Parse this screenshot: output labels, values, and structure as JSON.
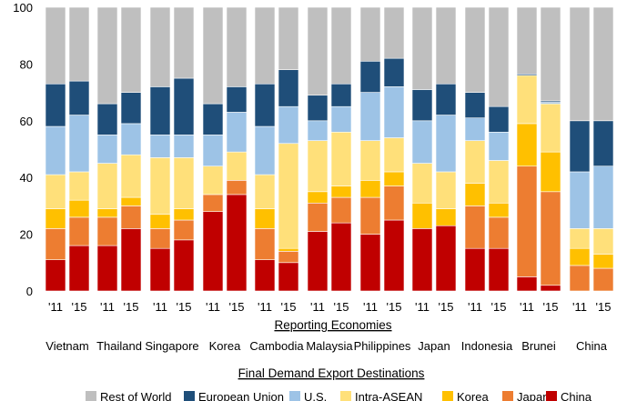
{
  "chart_data": {
    "type": "bar",
    "stacked": true,
    "ylim": [
      0,
      100
    ],
    "yticks": [
      0,
      20,
      40,
      60,
      80,
      100
    ],
    "xlabel": "Reporting Economies",
    "legend_title": "Final Demand Export Destinations",
    "legend_position": "bottom",
    "grid": false,
    "series": [
      {
        "name": "China",
        "color": "#c00000"
      },
      {
        "name": "Japan",
        "color": "#ed7d31"
      },
      {
        "name": "Korea",
        "color": "#ffc000"
      },
      {
        "name": "Intra-ASEAN",
        "color": "#ffe07a"
      },
      {
        "name": "U.S.",
        "color": "#9dc3e6"
      },
      {
        "name": "European Union",
        "color": "#1f4e79"
      },
      {
        "name": "Rest of World",
        "color": "#bfbfbf"
      }
    ],
    "groups": [
      {
        "economy": "Vietnam",
        "bars": [
          {
            "year": "'11",
            "values": [
              11,
              11,
              7,
              12,
              17,
              15,
              27
            ]
          },
          {
            "year": "'15",
            "values": [
              16,
              10,
              6,
              10,
              20,
              12,
              26
            ]
          }
        ]
      },
      {
        "economy": "Thailand",
        "bars": [
          {
            "year": "'11",
            "values": [
              16,
              10,
              3,
              16,
              10,
              11,
              34
            ]
          },
          {
            "year": "'15",
            "values": [
              22,
              8,
              3,
              15,
              11,
              11,
              30
            ]
          }
        ]
      },
      {
        "economy": "Singapore",
        "bars": [
          {
            "year": "'11",
            "values": [
              15,
              7,
              5,
              20,
              8,
              17,
              28
            ]
          },
          {
            "year": "'15",
            "values": [
              18,
              7,
              4,
              18,
              8,
              20,
              25
            ]
          }
        ]
      },
      {
        "economy": "Korea",
        "bars": [
          {
            "year": "'11",
            "values": [
              28,
              6,
              0,
              10,
              11,
              11,
              34
            ]
          },
          {
            "year": "'15",
            "values": [
              34,
              5,
              0,
              10,
              14,
              9,
              28
            ]
          }
        ]
      },
      {
        "economy": "Cambodia",
        "bars": [
          {
            "year": "'11",
            "values": [
              11,
              11,
              7,
              12,
              17,
              15,
              27
            ]
          },
          {
            "year": "'15",
            "values": [
              10,
              4,
              1,
              37,
              13,
              13,
              22
            ]
          }
        ]
      },
      {
        "economy": "Malaysia",
        "bars": [
          {
            "year": "'11",
            "values": [
              21,
              10,
              4,
              18,
              7,
              9,
              31
            ]
          },
          {
            "year": "'15",
            "values": [
              24,
              9,
              4,
              19,
              9,
              8,
              27
            ]
          }
        ]
      },
      {
        "economy": "Philippines",
        "bars": [
          {
            "year": "'11",
            "values": [
              20,
              13,
              6,
              14,
              17,
              11,
              19
            ]
          },
          {
            "year": "'15",
            "values": [
              25,
              12,
              5,
              12,
              18,
              10,
              18
            ]
          }
        ]
      },
      {
        "economy": "Japan",
        "bars": [
          {
            "year": "'11",
            "values": [
              22,
              0,
              9,
              14,
              15,
              11,
              29
            ]
          },
          {
            "year": "'15",
            "values": [
              23,
              0,
              6,
              13,
              20,
              11,
              27
            ]
          }
        ]
      },
      {
        "economy": "Indonesia",
        "bars": [
          {
            "year": "'11",
            "values": [
              15,
              15,
              8,
              15,
              8,
              9,
              30
            ]
          },
          {
            "year": "'15",
            "values": [
              15,
              11,
              5,
              15,
              10,
              9,
              35
            ]
          }
        ]
      },
      {
        "economy": "Brunei",
        "bars": [
          {
            "year": "'11",
            "values": [
              5,
              39,
              15,
              17,
              0,
              0.5,
              23.5
            ]
          },
          {
            "year": "'15",
            "values": [
              2,
              33,
              14,
              17,
              0.5,
              0.5,
              33
            ]
          }
        ]
      },
      {
        "economy": "China",
        "bars": [
          {
            "year": "'11",
            "values": [
              0,
              9,
              6,
              7,
              20,
              18,
              40
            ]
          },
          {
            "year": "'15",
            "values": [
              0,
              8,
              5,
              9,
              22,
              16,
              40
            ]
          }
        ]
      }
    ]
  }
}
